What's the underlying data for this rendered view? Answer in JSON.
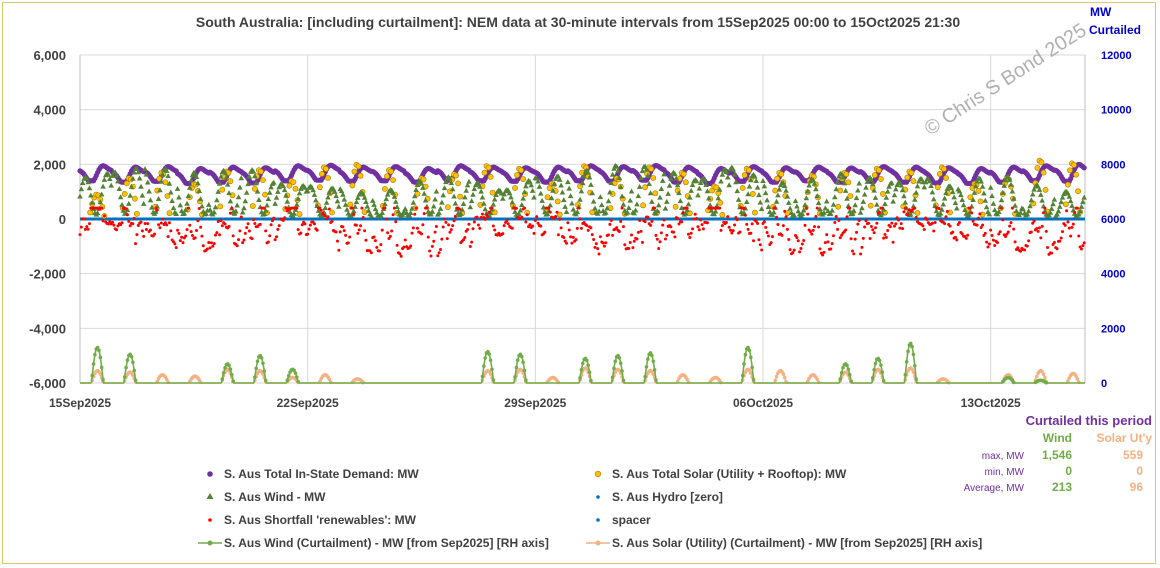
{
  "chart_data": {
    "type": "scatter",
    "title": "South Australia:  [including curtailment]:  NEM data at 30-minute intervals from 15Sep2025 00:00 to 15Oct2025 21:30",
    "y_left": {
      "ylim": [
        -6000,
        6000
      ],
      "ticks": [
        "6,000",
        "4,000",
        "2,000",
        "0",
        "-2,000",
        "-4,000",
        "-6,000"
      ]
    },
    "y_right": {
      "label_line1": "MW",
      "label_line2": "Curtailed",
      "ylim": [
        0,
        12000
      ],
      "ticks": [
        "12000",
        "10000",
        "8000",
        "6000",
        "4000",
        "2000",
        "0"
      ]
    },
    "x_axis": {
      "start_day": 0,
      "end_day": 30.9,
      "ticks": [
        {
          "day": 0,
          "label": "15Sep2025"
        },
        {
          "day": 7,
          "label": "22Sep2025"
        },
        {
          "day": 14,
          "label": "29Sep2025"
        },
        {
          "day": 21,
          "label": "06Oct2025"
        },
        {
          "day": 28,
          "label": "13Oct2025"
        }
      ]
    },
    "watermark": "© Chris S Bond  2025",
    "series": [
      {
        "key": "demand",
        "name": "S. Aus Total In-State Demand: MW",
        "color": "#7030a0",
        "marker": "circle",
        "axis": "left",
        "daily_peaks": [
          1950,
          1900,
          1920,
          1850,
          1900,
          1880,
          1950,
          1970,
          1900,
          1920,
          1850,
          1950,
          1900,
          1880,
          1900,
          1950,
          1920,
          1960,
          1900,
          1850,
          1920,
          1880,
          1900,
          1870,
          1920,
          1900,
          1880,
          1850,
          1900,
          1950,
          2000
        ],
        "daily_troughs": [
          1400,
          1350,
          1380,
          1300,
          1350,
          1320,
          1400,
          1420,
          1380,
          1400,
          1350,
          1420,
          1400,
          1380,
          1350,
          1400,
          1380,
          1420,
          1350,
          1300,
          1380,
          1350,
          1400,
          1350,
          1380,
          1350,
          1320,
          1300,
          1350,
          1400,
          1380
        ]
      },
      {
        "key": "solar",
        "name": "S. Aus Total Solar (Utility + Rooftop): MW",
        "color": "#ffc000",
        "marker": "circle-open",
        "axis": "left",
        "daily_peaks": [
          900,
          1500,
          1700,
          1300,
          1750,
          1800,
          1400,
          1900,
          2000,
          1800,
          1500,
          1650,
          1950,
          1850,
          1300,
          1950,
          1500,
          1900,
          1700,
          1200,
          1850,
          1700,
          1600,
          1700,
          1850,
          1750,
          1900,
          1300,
          1500,
          2150,
          2050
        ]
      },
      {
        "key": "wind",
        "name": "S. Aus Wind - MW",
        "color": "#548235",
        "marker": "triangle",
        "axis": "left",
        "daily_peaks": [
          1500,
          1700,
          1900,
          1800,
          1600,
          2000,
          1300,
          1200,
          1100,
          900,
          1200,
          1600,
          1400,
          1000,
          1500,
          1600,
          1900,
          2000,
          1800,
          1400,
          1900,
          1500,
          1200,
          1700,
          1600,
          1300,
          1500,
          1100,
          1700,
          1400,
          1000
        ]
      },
      {
        "key": "hydro",
        "name": "S. Aus Hydro [zero]",
        "color": "#0070c0",
        "marker": "dot",
        "axis": "left",
        "value": 0
      },
      {
        "key": "shortfall",
        "name": "S. Aus Shortfall 'renewables': MW",
        "color": "#ff0000",
        "marker": "dot",
        "axis": "left",
        "daily_troughs": [
          -900,
          -1100,
          -1000,
          -1650,
          -1100,
          -1000,
          -800,
          -1300,
          -1200,
          -1400,
          -1200,
          -1150,
          -1000,
          -1350,
          -1500,
          -1100,
          -1200,
          -900,
          -800,
          -1000,
          -1550,
          -1300,
          -1200,
          -1300,
          -1300,
          -1050,
          -900,
          -1100,
          -1450,
          -1300,
          -1350
        ]
      },
      {
        "key": "spacer",
        "name": "spacer",
        "color": "#0070c0",
        "marker": "dot",
        "axis": "left"
      },
      {
        "key": "wind_curt",
        "name": "S. Aus Wind (Curtailment) - MW [from Sep2025] [RH axis]",
        "color": "#70ad47",
        "marker": "line-dot",
        "axis": "right",
        "daily_peaks": [
          1300,
          1050,
          0,
          0,
          700,
          1000,
          500,
          0,
          0,
          0,
          0,
          0,
          1150,
          1050,
          0,
          900,
          1000,
          1100,
          0,
          0,
          1300,
          0,
          0,
          700,
          900,
          1450,
          0,
          0,
          200,
          100,
          0
        ]
      },
      {
        "key": "solar_curt",
        "name": "S. Aus Solar (Utility) (Curtailment) - MW [from Sep2025] [RH axis]",
        "color": "#f4b183",
        "marker": "line-dot",
        "axis": "right",
        "daily_peaks": [
          450,
          400,
          300,
          250,
          500,
          450,
          200,
          300,
          150,
          0,
          0,
          0,
          450,
          500,
          200,
          550,
          500,
          450,
          300,
          200,
          500,
          450,
          300,
          400,
          500,
          550,
          150,
          0,
          300,
          450,
          350
        ]
      }
    ],
    "curtailed_stats": {
      "title": "Curtailed this period",
      "headers": [
        "Wind",
        "Solar Ut'y"
      ],
      "rows": [
        {
          "label": "max, MW",
          "wind": "1,546",
          "solar": "559"
        },
        {
          "label": "min, MW",
          "wind": "0",
          "solar": "0"
        },
        {
          "label": "Average, MW",
          "wind": "213",
          "solar": "96"
        }
      ]
    }
  }
}
